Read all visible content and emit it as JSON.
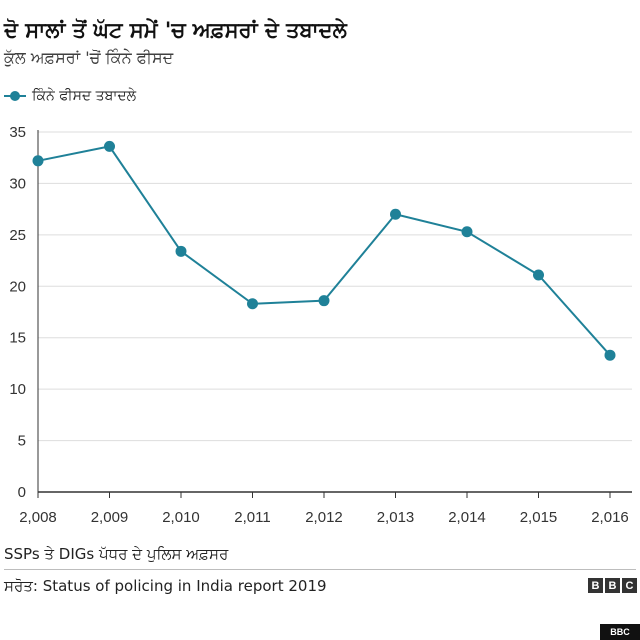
{
  "header": {
    "title": "ਦੋ ਸਾਲਾਂ ਤੋਂ ਘੱਟ ਸਮੇਂ 'ਚ ਅਫ਼ਸਰਾਂ ਦੇ ਤਬਾਦਲੇ",
    "subtitle": "ਕੁੱਲ ਅਫ਼ਸਰਾਂ 'ਚੋਂ ਕਿੰਨੇ ਫੀਸਦ"
  },
  "footer": {
    "note": "SSPs ਤੇ DIGs ਪੱਧਰ ਦੇ ਪੁਲਿਸ ਅਫ਼ਸਰ",
    "source": "ਸਰੋਤ: Status of policing in India report 2019",
    "logo_letters": [
      "B",
      "B",
      "C"
    ],
    "badge": "BBC"
  },
  "colors": {
    "series": "#1f8198",
    "axis": "#333333",
    "grid": "#dddddd"
  },
  "chart_data": {
    "type": "line",
    "title": "ਦੋ ਸਾਲਾਂ ਤੋਂ ਘੱਟ ਸਮੇਂ 'ਚ ਅਫ਼ਸਰਾਂ ਦੇ ਤਬਾਦਲੇ",
    "xlabel": "",
    "ylabel": "ਕੁੱਲ ਅਫ਼ਸਰਾਂ 'ਚੋਂ ਕਿੰਨੇ ਫੀਸਦ",
    "x": [
      "2,008",
      "2,009",
      "2,010",
      "2,011",
      "2,012",
      "2,013",
      "2,014",
      "2,015",
      "2,016"
    ],
    "series": [
      {
        "name": "ਕਿੰਨੇ ਫੀਸਦ ਤਬਾਦਲੇ",
        "values": [
          32.2,
          33.6,
          23.4,
          18.3,
          18.6,
          27.0,
          25.3,
          21.1,
          13.3
        ]
      }
    ],
    "ylim": [
      0,
      35
    ],
    "yticks": [
      0,
      5,
      10,
      15,
      20,
      25,
      30,
      35
    ],
    "grid": true,
    "legend": "top-left"
  }
}
